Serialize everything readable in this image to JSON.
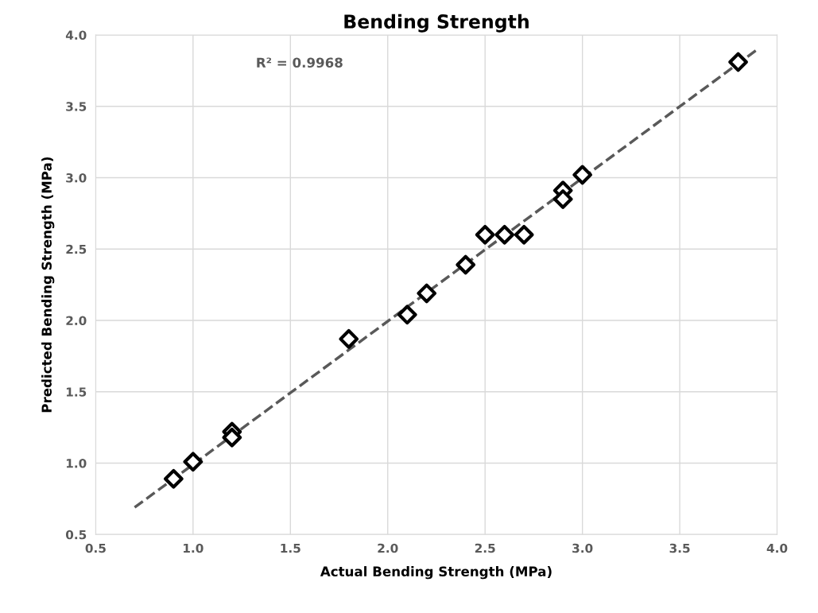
{
  "chart_data": {
    "type": "scatter",
    "title": "Bending Strength",
    "xlabel": "Actual Bending Strength (MPa)",
    "ylabel": "Predicted Bending Strength (MPa)",
    "annotations": [
      "R² = 0.9968"
    ],
    "series": [
      {
        "color": "#000000",
        "marker": "diamond",
        "x": [
          0.9,
          1.0,
          1.2,
          1.2,
          1.8,
          2.1,
          2.2,
          2.4,
          2.5,
          2.6,
          2.7,
          2.9,
          2.9,
          3.0,
          3.8
        ],
        "values": [
          0.89,
          1.01,
          1.22,
          1.18,
          1.87,
          2.04,
          2.19,
          2.39,
          2.6,
          2.6,
          2.6,
          2.91,
          2.85,
          3.02,
          3.81
        ]
      },
      {
        "type": "line",
        "color": "#595959",
        "line_style": "dashed",
        "x": [
          0.7,
          3.9
        ],
        "values": [
          0.69,
          3.9
        ]
      }
    ],
    "xlim": [
      0.5,
      4.0
    ],
    "xticks": [
      {
        "value": 0.5,
        "label": "0.5"
      },
      {
        "value": 1.0,
        "label": "1.0"
      },
      {
        "value": 1.5,
        "label": "1.5"
      },
      {
        "value": 2.0,
        "label": "2.0"
      },
      {
        "value": 2.5,
        "label": "2.5"
      },
      {
        "value": 3.0,
        "label": "3.0"
      },
      {
        "value": 3.5,
        "label": "3.5"
      },
      {
        "value": 4.0,
        "label": "4.0"
      }
    ],
    "ylim": [
      0.5,
      4.0
    ],
    "yticks": [
      {
        "value": 0.5,
        "label": "0.5"
      },
      {
        "value": 1.0,
        "label": "1.0"
      },
      {
        "value": 1.5,
        "label": "1.5"
      },
      {
        "value": 2.0,
        "label": "2.0"
      },
      {
        "value": 2.5,
        "label": "2.5"
      },
      {
        "value": 3.0,
        "label": "3.0"
      },
      {
        "value": 3.5,
        "label": "3.5"
      },
      {
        "value": 4.0,
        "label": "4.0"
      }
    ],
    "grid": true
  }
}
